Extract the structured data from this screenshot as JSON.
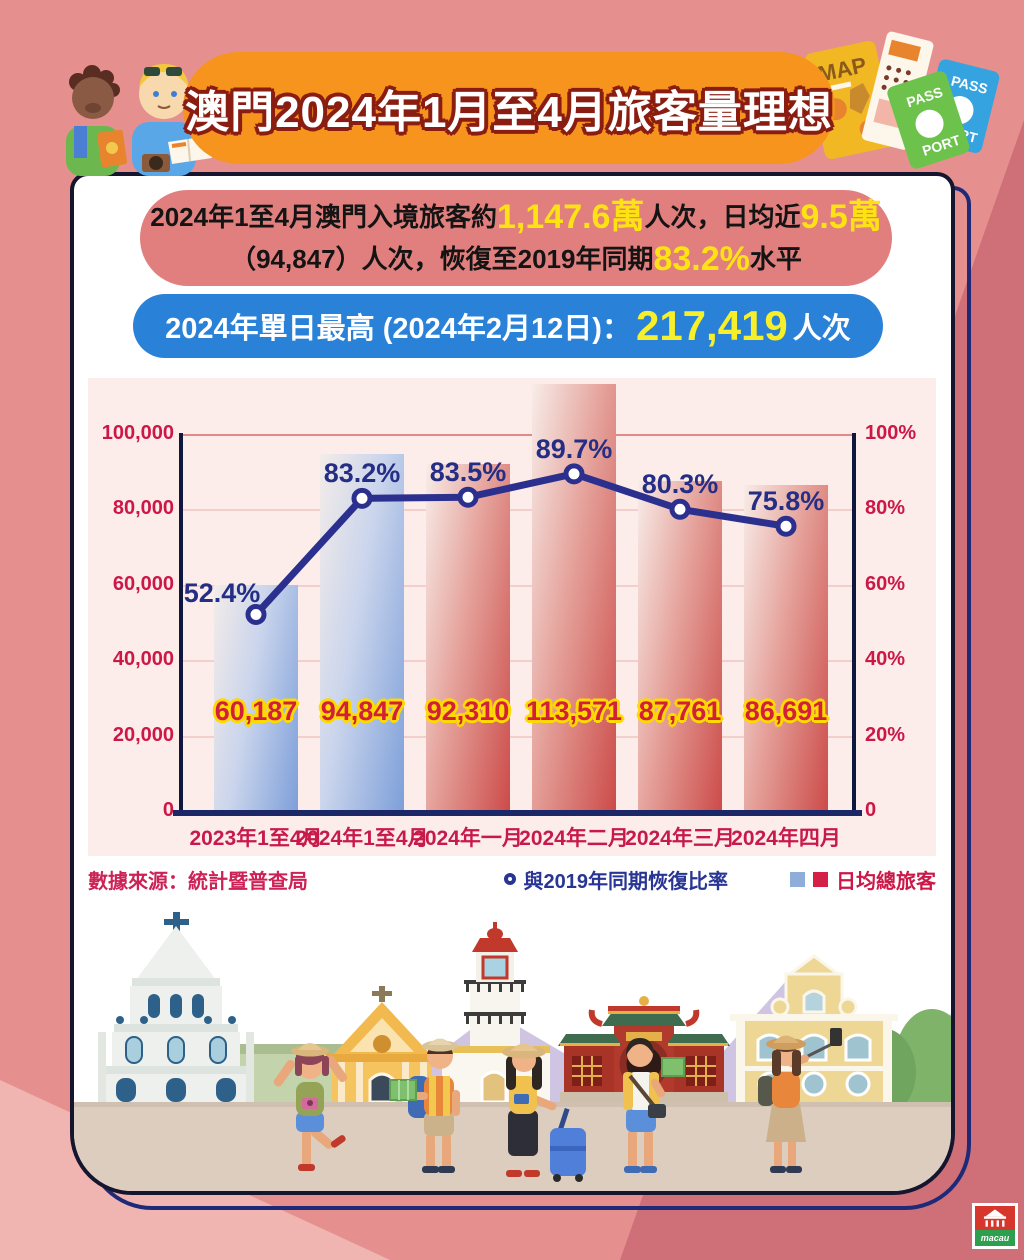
{
  "title": "澳門2024年1月至4月旅客量理想",
  "summary": {
    "line1": [
      {
        "text": "2024年1至4月澳門入境旅客約",
        "style": "normal"
      },
      {
        "text": "1,147.6萬",
        "style": "highlight"
      },
      {
        "text": "人次，日均近",
        "style": "normal"
      },
      {
        "text": "9.5萬",
        "style": "highlight"
      }
    ],
    "line2": [
      {
        "text": "（94,847）人次，恢復至2019年同期",
        "style": "normal"
      },
      {
        "text": "83.2%",
        "style": "highlight"
      },
      {
        "text": "水平",
        "style": "normal"
      }
    ]
  },
  "record": {
    "label": "2024年單日最高 (2024年2月12日)：",
    "value": "217,419",
    "unit": "人次"
  },
  "chart_data": {
    "type": "combo bar+line",
    "categories": [
      "2023年1至4月",
      "2024年1至4月",
      "2024年一月",
      "2024年二月",
      "2024年三月",
      "2024年四月"
    ],
    "series": [
      {
        "name": "日均總旅客",
        "type": "bar",
        "values": [
          60187,
          94847,
          92310,
          113571,
          87761,
          86691
        ],
        "labels": [
          "60,187",
          "94,847",
          "92,310",
          "113,571",
          "87,761",
          "86,691"
        ],
        "colors": [
          "blue",
          "blue",
          "red",
          "red",
          "red",
          "red"
        ]
      },
      {
        "name": "與2019年同期恢復比率",
        "type": "line",
        "values": [
          52.4,
          83.2,
          83.5,
          89.7,
          80.3,
          75.8
        ],
        "labels": [
          "52.4%",
          "83.2%",
          "83.5%",
          "89.7%",
          "80.3%",
          "75.8%"
        ]
      }
    ],
    "left_axis": {
      "ticks": [
        "100,000",
        "80,000",
        "60,000",
        "40,000",
        "20,000",
        "0"
      ],
      "max": 100000
    },
    "right_axis": {
      "ticks": [
        "100%",
        "80%",
        "60%",
        "40%",
        "20%",
        "0"
      ],
      "max": 100
    },
    "grid": true,
    "legend_position": "bottom-right"
  },
  "footer": {
    "source": "數據來源：統計暨普查局",
    "line_legend": "與2019年同期恢復比率",
    "bar_legend": "日均總旅客"
  },
  "decor": {
    "map_label": "MAP",
    "passport_top": "PASS",
    "passport_bottom": "PORT",
    "logo_text": "macau"
  },
  "colors": {
    "page_bg": "#e5908e",
    "banner_orange": "#f7941d",
    "summary_pink": "#e07f7d",
    "highlight_yellow": "#ffe214",
    "record_blue": "#2a82d8",
    "record_value_yellow": "#f6ef2a",
    "chart_bg": "#fcedea",
    "axis_red": "#cc1747",
    "bar_blue": "#7d9fd9",
    "bar_red": "#cc4b49",
    "line_navy": "#2b2f8e",
    "bar_value_red": "#d2203c"
  }
}
